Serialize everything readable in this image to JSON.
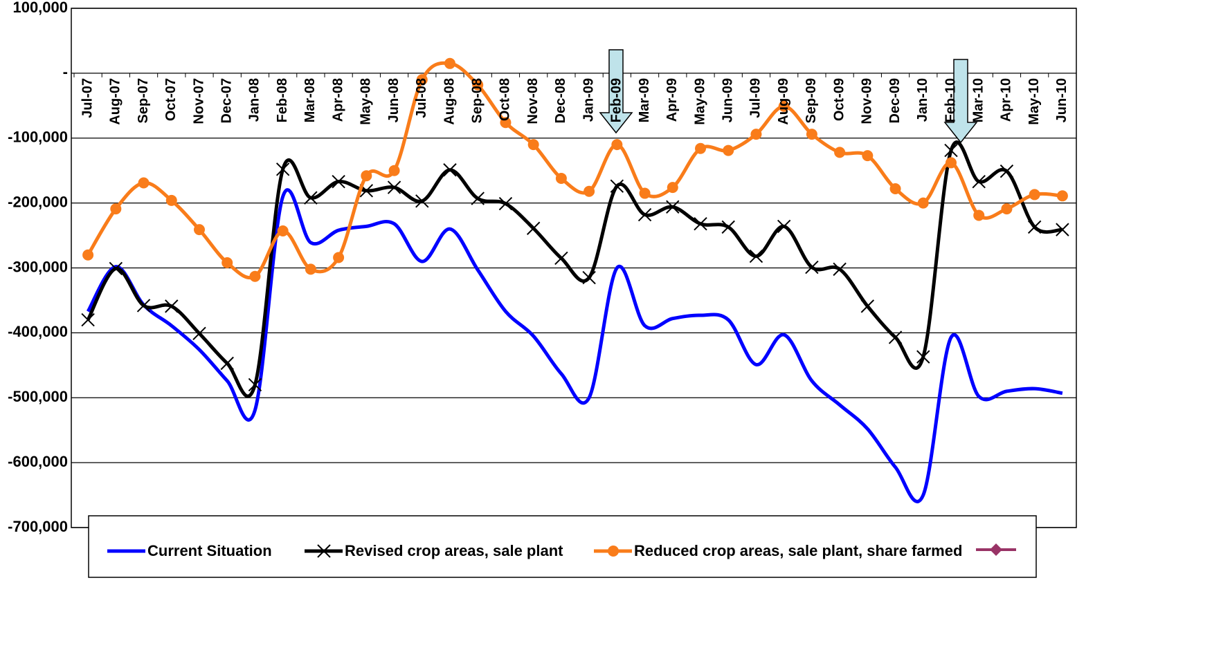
{
  "chart_data": {
    "type": "line",
    "categories": [
      "Jul-07",
      "Aug-07",
      "Sep-07",
      "Oct-07",
      "Nov-07",
      "Dec-07",
      "Jan-08",
      "Feb-08",
      "Mar-08",
      "Apr-08",
      "May-08",
      "Jun-08",
      "Jul-08",
      "Aug-08",
      "Sep-08",
      "Oct-08",
      "Nov-08",
      "Dec-08",
      "Jan-09",
      "Feb-09",
      "Mar-09",
      "Apr-09",
      "May-09",
      "Jun-09",
      "Jul-09",
      "Aug-09",
      "Sep-09",
      "Oct-09",
      "Nov-09",
      "Dec-09",
      "Jan-10",
      "Feb-10",
      "Mar-10",
      "Apr-10",
      "May-10",
      "Jun-10"
    ],
    "series": [
      {
        "name": "Current Situation",
        "color": "#0000ff",
        "marker": "none",
        "values": [
          -367000,
          -298000,
          -357000,
          -389000,
          -426000,
          -474000,
          -519000,
          -190000,
          -261000,
          -242000,
          -236000,
          -232000,
          -290000,
          -240000,
          -303000,
          -367000,
          -405000,
          -463000,
          -500000,
          -300000,
          -389000,
          -378000,
          -373000,
          -380000,
          -449000,
          -403000,
          -474000,
          -511000,
          -548000,
          -607000,
          -650000,
          -407000,
          -498000,
          -490000,
          -486000,
          -493000
        ]
      },
      {
        "name": "Revised crop areas, sale plant",
        "color": "#000000",
        "marker": "x",
        "values": [
          -380000,
          -301000,
          -358000,
          -359000,
          -401000,
          -447000,
          -480000,
          -148000,
          -192000,
          -167000,
          -181000,
          -176000,
          -197000,
          -149000,
          -193000,
          -201000,
          -239000,
          -285000,
          -315000,
          -174000,
          -218000,
          -206000,
          -232000,
          -237000,
          -282000,
          -236000,
          -299000,
          -302000,
          -359000,
          -407000,
          -437000,
          -119000,
          -167000,
          -151000,
          -237000,
          -241000
        ]
      },
      {
        "name": "Reduced crop areas, sale plant, share farmed",
        "color": "#f97c1a",
        "marker": "circle",
        "values": [
          -280000,
          -209000,
          -169000,
          -196000,
          -241000,
          -292000,
          -313000,
          -243000,
          -302000,
          -284000,
          -158000,
          -150000,
          -10000,
          15000,
          -18000,
          -76000,
          -110000,
          -162000,
          -182000,
          -110000,
          -185000,
          -176000,
          -116000,
          -119000,
          -94000,
          -51000,
          -94000,
          -122000,
          -127000,
          -178000,
          -200000,
          -138000,
          -219000,
          -209000,
          -187000,
          -189000
        ]
      }
    ],
    "ylim": [
      -700000,
      100000
    ],
    "yticks": [
      {
        "value": -700000,
        "label": "-700,000"
      },
      {
        "value": -600000,
        "label": "-600,000"
      },
      {
        "value": -500000,
        "label": "-500,000"
      },
      {
        "value": -400000,
        "label": "-400,000"
      },
      {
        "value": -300000,
        "label": "-300,000"
      },
      {
        "value": -200000,
        "label": "-200,000"
      },
      {
        "value": -100000,
        "label": "-100,000"
      },
      {
        "value": 0,
        "label": "-"
      },
      {
        "value": 100000,
        "label": "100,000"
      }
    ],
    "grid": true,
    "legend": "bottom"
  }
}
